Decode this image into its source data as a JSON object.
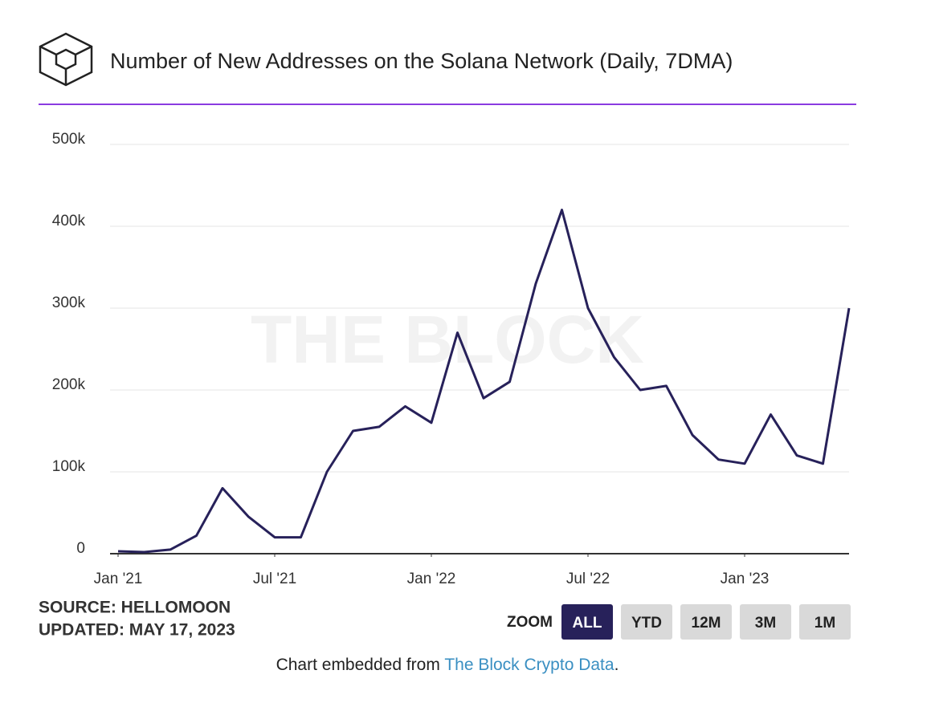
{
  "chart_data": {
    "type": "line",
    "title": "Number of New Addresses on the Solana Network (Daily, 7DMA)",
    "watermark": "THE BLOCK",
    "x": [
      "2021-01",
      "2021-02",
      "2021-03",
      "2021-04",
      "2021-05",
      "2021-06",
      "2021-07",
      "2021-08",
      "2021-09",
      "2021-10",
      "2021-11",
      "2021-12",
      "2022-01",
      "2022-02",
      "2022-03",
      "2022-04",
      "2022-05",
      "2022-06",
      "2022-07",
      "2022-08",
      "2022-09",
      "2022-10",
      "2022-11",
      "2022-12",
      "2023-01",
      "2023-02",
      "2023-03",
      "2023-04",
      "2023-05"
    ],
    "series": [
      {
        "name": "New Addresses",
        "color": "#27215a",
        "values": [
          3000,
          2000,
          5000,
          22000,
          80000,
          45000,
          20000,
          20000,
          100000,
          150000,
          155000,
          180000,
          160000,
          270000,
          190000,
          210000,
          330000,
          420000,
          300000,
          240000,
          200000,
          205000,
          145000,
          115000,
          110000,
          170000,
          120000,
          110000,
          300000
        ]
      }
    ],
    "xlim": [
      "2021-01",
      "2023-05"
    ],
    "xticks": [
      {
        "value": "2021-01",
        "label": "Jan '21"
      },
      {
        "value": "2021-07",
        "label": "Jul '21"
      },
      {
        "value": "2022-01",
        "label": "Jan '22"
      },
      {
        "value": "2022-07",
        "label": "Jul '22"
      },
      {
        "value": "2023-01",
        "label": "Jan '23"
      }
    ],
    "ylim": [
      0,
      500000
    ],
    "yticks": [
      0,
      {
        "value": 100000,
        "label": "100k"
      },
      {
        "value": 200000,
        "label": "200k"
      },
      {
        "value": 300000,
        "label": "300k"
      },
      {
        "value": 400000,
        "label": "400k"
      },
      {
        "value": 500000,
        "label": "500k"
      }
    ],
    "grid": true,
    "source": "SOURCE: HELLOMOON",
    "updated": "UPDATED: MAY 17, 2023",
    "zoom_label": "ZOOM",
    "zoom_buttons": [
      "ALL",
      "YTD",
      "12M",
      "3M",
      "1M"
    ],
    "embed_text": "Chart embedded from ",
    "embed_link": "The Block Crypto Data",
    "embed_end": "."
  }
}
